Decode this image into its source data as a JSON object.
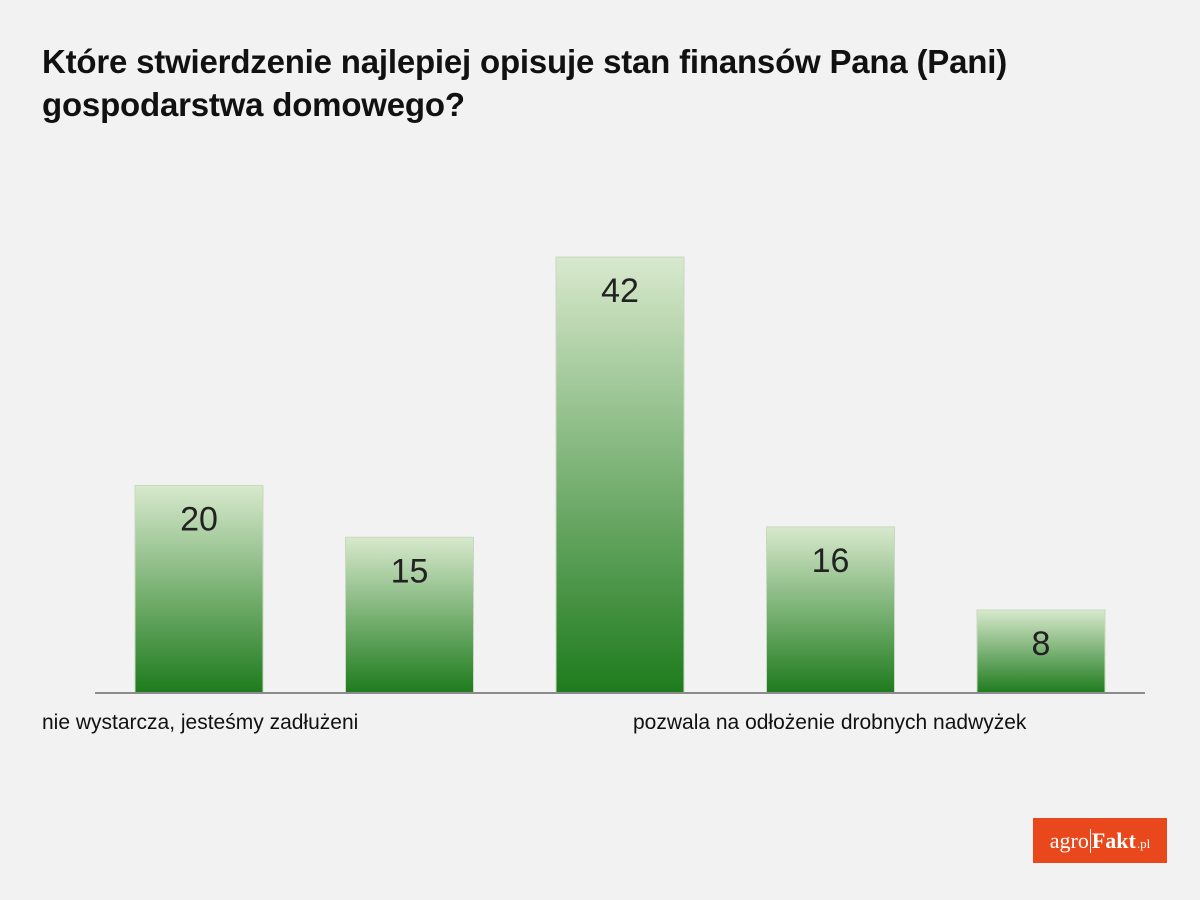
{
  "header": {
    "title": "Które stwierdzenie najlepiej opisuje stan finansów Pana (Pani) gospodarstwa domowego?"
  },
  "logo": {
    "part1": "agro",
    "part2": "Fakt",
    "part3": ".pl"
  },
  "colors": {
    "background": "#f2f2f2",
    "bar_top": "#d8e9cd",
    "bar_bottom": "#1e7b1d",
    "axis": "#8c8c8c",
    "logo_bg": "#e8481c"
  },
  "chart_data": {
    "type": "bar",
    "title": "Które stwierdzenie najlepiej opisuje stan finansów Pana (Pani) gospodarstwa domowego?",
    "categories": [
      "nie wystarcza, jesteśmy zadłużeni",
      "",
      "",
      "pozwala na odłożenie drobnych nadwyżek",
      ""
    ],
    "values": [
      20,
      15,
      42,
      16,
      8
    ],
    "ylim": [
      0,
      42
    ],
    "xlabel": "",
    "ylabel": "",
    "grid": false,
    "legend": "none"
  }
}
